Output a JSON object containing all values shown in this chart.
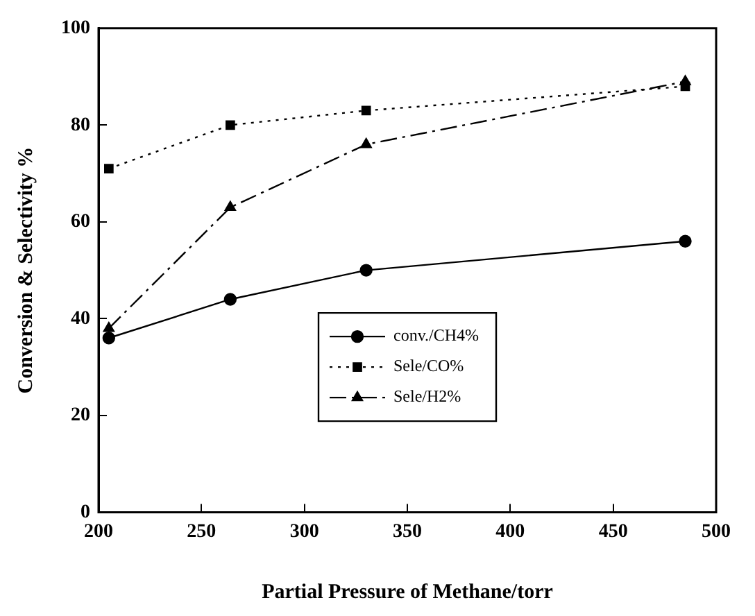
{
  "chart_data": {
    "type": "line",
    "xlabel": "Partial Pressure of Methane/torr",
    "ylabel": "Conversion & Selectivity %",
    "xlim": [
      200,
      500
    ],
    "xticks": [
      200,
      250,
      300,
      350,
      400,
      450,
      500
    ],
    "ylim": [
      0,
      100
    ],
    "yticks": [
      0,
      20,
      40,
      60,
      80,
      100
    ],
    "grid": false,
    "legend": "bottom",
    "series": [
      {
        "name": "conv./CH4%",
        "color": "#000000",
        "x": [
          205,
          264,
          330,
          485
        ],
        "values": [
          36,
          44,
          50,
          56
        ],
        "marker": "circle",
        "line_style": "solid"
      },
      {
        "name": "Sele/CO%",
        "color": "#000000",
        "x": [
          205,
          264,
          330,
          485
        ],
        "values": [
          71,
          80,
          83,
          88
        ],
        "marker": "square",
        "line_style": "dotted"
      },
      {
        "name": "Sele/H2%",
        "color": "#000000",
        "x": [
          205,
          264,
          330,
          485
        ],
        "values": [
          38,
          63,
          76,
          89
        ],
        "marker": "triangle",
        "line_style": "dashdot"
      }
    ]
  }
}
